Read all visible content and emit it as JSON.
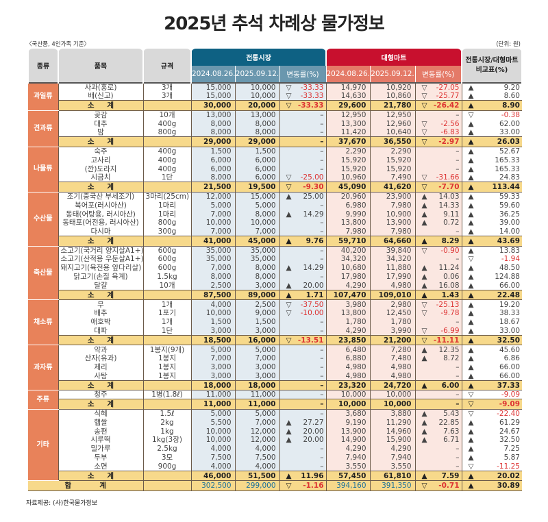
{
  "title": "2025년 추석 차례상 물가정보",
  "basis": "〈국산품, 4인가족 기준〉",
  "unit": "(단위: 원)",
  "source": "자료제공: (사)한국물가정보",
  "colors": {
    "traditional": "#0e6183",
    "mart": "#c8102e",
    "category": "#e8825a",
    "subtotal": "#f7d98b",
    "negative": "#dd3333"
  },
  "header": {
    "category": "종류",
    "item": "품목",
    "spec": "규격",
    "traditional": "전통시장",
    "mart": "대형마트",
    "date1": "2024.08.26.",
    "date2": "2025.09.12.",
    "change": "변동률(%)",
    "compare1": "전통시장/대형마트",
    "compare2": "비교표(%)"
  },
  "subtotal_label": [
    "소",
    "계"
  ],
  "total_label": [
    "합",
    "계"
  ],
  "categories": [
    {
      "name": "과일류",
      "items": [
        [
          "사과(홍로)",
          "3개",
          "15,000",
          "10,000",
          "-33.33",
          "14,970",
          "10,920",
          "-27.05",
          "9.20"
        ],
        [
          "배(신고)",
          "3개",
          "15,000",
          "10,000",
          "-33.33",
          "14,630",
          "10,860",
          "-25.77",
          "8.60"
        ]
      ],
      "subtotal": [
        "30,000",
        "20,000",
        "-33.33",
        "29,600",
        "21,780",
        "-26.42",
        "8.90"
      ]
    },
    {
      "name": "견과류",
      "items": [
        [
          "곶감",
          "10개",
          "13,000",
          "13,000",
          "-",
          "12,950",
          "12,950",
          "-",
          "-0.38"
        ],
        [
          "대추",
          "400g",
          "8,000",
          "8,000",
          "-",
          "13,300",
          "12,960",
          "-2.56",
          "62.00"
        ],
        [
          "밤",
          "800g",
          "8,000",
          "8,000",
          "-",
          "11,420",
          "10,640",
          "-6.83",
          "33.00"
        ]
      ],
      "subtotal": [
        "29,000",
        "29,000",
        "-",
        "37,670",
        "36,550",
        "-2.97",
        "26.03"
      ]
    },
    {
      "name": "나물류",
      "items": [
        [
          "숙주",
          "400g",
          "1,500",
          "1,500",
          "-",
          "2,290",
          "2,290",
          "-",
          "52.67"
        ],
        [
          "고사리",
          "400g",
          "6,000",
          "6,000",
          "-",
          "15,920",
          "15,920",
          "-",
          "165.33"
        ],
        [
          "(깐)도라지",
          "400g",
          "6,000",
          "6,000",
          "-",
          "15,920",
          "15,920",
          "-",
          "165.33"
        ],
        [
          "시금치",
          "1단",
          "8,000",
          "6,000",
          "-25.00",
          "10,960",
          "7,490",
          "-31.66",
          "24.83"
        ]
      ],
      "subtotal": [
        "21,500",
        "19,500",
        "-9.30",
        "45,090",
        "41,620",
        "-7.70",
        "113.44"
      ]
    },
    {
      "name": "수산물",
      "items": [
        [
          "조기(중국산 부세조기)",
          "3마리(25cm)",
          "12,000",
          "15,000",
          "25.00",
          "20,960",
          "23,900",
          "14.03",
          "59.33"
        ],
        [
          "북어포(러시아산)",
          "1마리",
          "5,000",
          "5,000",
          "-",
          "6,980",
          "7,980",
          "14.33",
          "59.60"
        ],
        [
          "동태(어탕용, 러시아산)",
          "1마리",
          "7,000",
          "8,000",
          "14.29",
          "9,990",
          "10,900",
          "9.11",
          "36.25"
        ],
        [
          "동태포(어전용, 러시아산)",
          "800g",
          "10,000",
          "10,000",
          "-",
          "13,800",
          "13,900",
          "0.72",
          "39.00"
        ],
        [
          "다시마",
          "300g",
          "7,000",
          "7,000",
          "-",
          "7,980",
          "7,980",
          "-",
          "14.00"
        ]
      ],
      "subtotal": [
        "41,000",
        "45,000",
        "9.76",
        "59,710",
        "64,660",
        "8.29",
        "43.69"
      ]
    },
    {
      "name": "축산물",
      "items": [
        [
          "소고기(국거리 양지살A1+)",
          "600g",
          "35,000",
          "35,000",
          "-",
          "40,200",
          "39,840",
          "-0.90",
          "13.83"
        ],
        [
          "소고기(산적용 우둔살A1+)",
          "600g",
          "35,000",
          "35,000",
          "-",
          "34,320",
          "34,320",
          "-",
          "-1.94"
        ],
        [
          "돼지고기(육전용 앞다리살)",
          "600g",
          "7,000",
          "8,000",
          "14.29",
          "10,680",
          "11,880",
          "11.24",
          "48.50"
        ],
        [
          "닭고기(손질 육계)",
          "1.5kg",
          "8,000",
          "8,000",
          "-",
          "17,980",
          "17,990",
          "0.06",
          "124.88"
        ],
        [
          "달걀",
          "10개",
          "2,500",
          "3,000",
          "20.00",
          "4,290",
          "4,980",
          "16.08",
          "66.00"
        ]
      ],
      "subtotal": [
        "87,500",
        "89,000",
        "1.71",
        "107,470",
        "109,010",
        "1.43",
        "22.48"
      ]
    },
    {
      "name": "채소류",
      "items": [
        [
          "무",
          "1개",
          "4,000",
          "2,500",
          "-37.50",
          "3,980",
          "2,980",
          "-25.13",
          "19.20"
        ],
        [
          "배추",
          "1포기",
          "10,000",
          "9,000",
          "-10.00",
          "13,800",
          "12,450",
          "-9.78",
          "38.33"
        ],
        [
          "애호박",
          "1개",
          "1,500",
          "1,500",
          "-",
          "1,780",
          "1,780",
          "-",
          "18.67"
        ],
        [
          "대파",
          "1단",
          "3,000",
          "3,000",
          "-",
          "4,290",
          "3,990",
          "-6.99",
          "33.00"
        ]
      ],
      "subtotal": [
        "18,500",
        "16,000",
        "-13.51",
        "23,850",
        "21,200",
        "-11.11",
        "32.50"
      ]
    },
    {
      "name": "과자류",
      "items": [
        [
          "약과",
          "1봉지(9개)",
          "5,000",
          "5,000",
          "-",
          "6,480",
          "7,280",
          "12.35",
          "45.60"
        ],
        [
          "산자(유과)",
          "1봉지",
          "7,000",
          "7,000",
          "-",
          "6,880",
          "7,480",
          "8.72",
          "6.86"
        ],
        [
          "제리",
          "1봉지",
          "3,000",
          "3,000",
          "-",
          "4,980",
          "4,980",
          "-",
          "66.00"
        ],
        [
          "사탕",
          "1봉지",
          "3,000",
          "3,000",
          "-",
          "4,980",
          "4,980",
          "-",
          "66.00"
        ]
      ],
      "subtotal": [
        "18,000",
        "18,000",
        "-",
        "23,320",
        "24,720",
        "6.00",
        "37.33"
      ]
    },
    {
      "name": "주류",
      "items": [
        [
          "청주",
          "1병(1.8ℓ)",
          "11,000",
          "11,000",
          "-",
          "10,000",
          "10,000",
          "-",
          "-9.09"
        ]
      ],
      "subtotal": [
        "11,000",
        "11,000",
        "-",
        "10,000",
        "10,000",
        "-",
        "-9.09"
      ]
    },
    {
      "name": "기타",
      "items": [
        [
          "식혜",
          "1.5ℓ",
          "5,000",
          "5,000",
          "-",
          "3,680",
          "3,880",
          "5.43",
          "-22.40"
        ],
        [
          "햅쌀",
          "2kg",
          "5,500",
          "7,000",
          "27.27",
          "9,190",
          "11,290",
          "22.85",
          "61.29"
        ],
        [
          "송편",
          "1kg",
          "10,000",
          "12,000",
          "20.00",
          "13,900",
          "14,960",
          "7.63",
          "24.67"
        ],
        [
          "시루떡",
          "1kg(3장)",
          "10,000",
          "12,000",
          "20.00",
          "14,900",
          "15,900",
          "6.71",
          "32.50"
        ],
        [
          "밀가루",
          "2.5kg",
          "4,000",
          "4,000",
          "-",
          "4,290",
          "4,290",
          "-",
          "7.25"
        ],
        [
          "두부",
          "3모",
          "7,500",
          "7,500",
          "-",
          "7,940",
          "7,940",
          "-",
          "5.87"
        ],
        [
          "소면",
          "900g",
          "4,000",
          "4,000",
          "-",
          "3,550",
          "3,550",
          "-",
          "-11.25"
        ]
      ],
      "subtotal": [
        "46,000",
        "51,500",
        "11.96",
        "57,450",
        "61,810",
        "7.59",
        "20.02"
      ]
    }
  ],
  "total": [
    "302,500",
    "299,000",
    "-1.16",
    "394,160",
    "391,350",
    "-0.71",
    "30.89"
  ]
}
